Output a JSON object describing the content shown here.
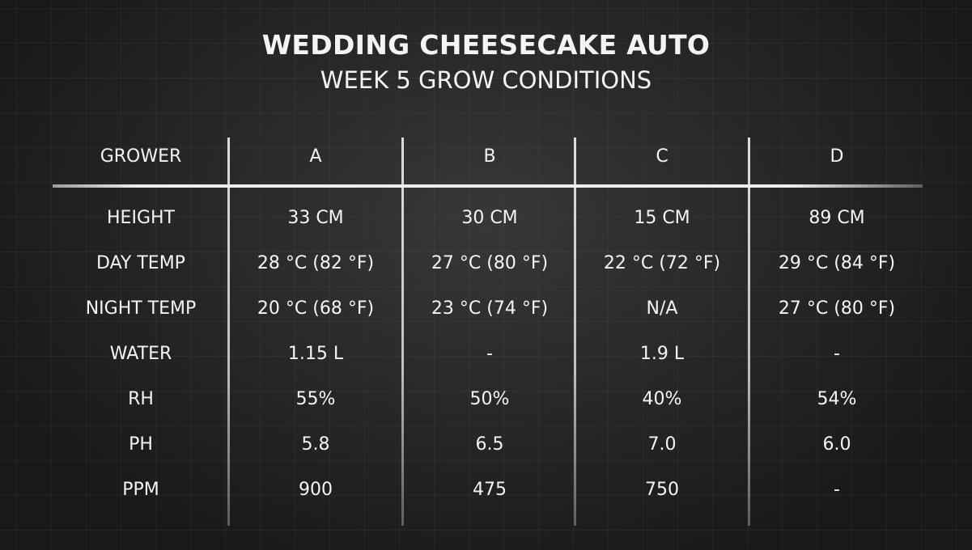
{
  "title": "WEDDING CHEESECAKE AUTO",
  "subtitle": "WEEK 5 GROW CONDITIONS",
  "table": {
    "headers": [
      "GROWER",
      "A",
      "B",
      "C",
      "D"
    ],
    "rows": [
      [
        "HEIGHT",
        "33 CM",
        "30 CM",
        "15 CM",
        "89 CM"
      ],
      [
        "DAY TEMP",
        "28 °C (82 °F)",
        "27 °C (80 °F)",
        "22 °C (72 °F)",
        "29 °C (84 °F)"
      ],
      [
        "NIGHT TEMP",
        "20 °C (68 °F)",
        "23 °C (74 °F)",
        "N/A",
        "27 °C (80 °F)"
      ],
      [
        "WATER",
        "1.15 L",
        "-",
        "1.9 L",
        "-"
      ],
      [
        "RH",
        "55%",
        "50%",
        "40%",
        "54%"
      ],
      [
        "PH",
        "5.8",
        "6.5",
        "7.0",
        "6.0"
      ],
      [
        "PPM",
        "900",
        "475",
        "750",
        "-"
      ]
    ]
  }
}
